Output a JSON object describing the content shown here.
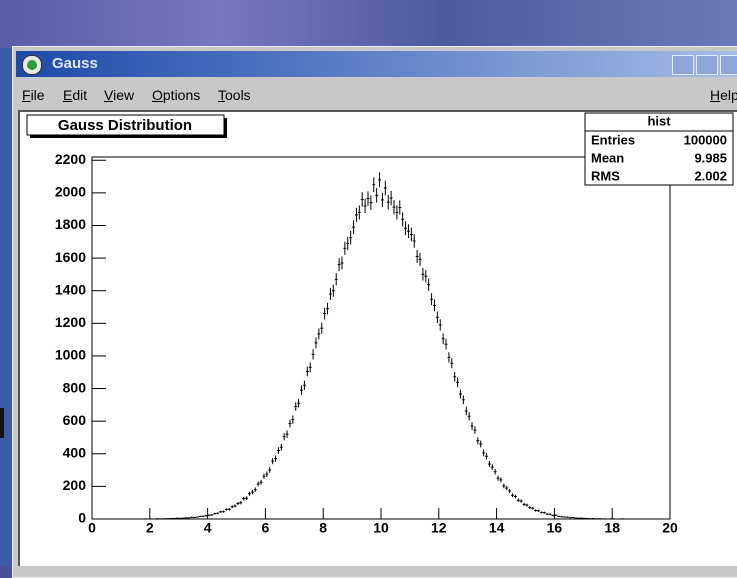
{
  "window": {
    "title": "Gauss",
    "menu": [
      "File",
      "Edit",
      "View",
      "Options",
      "Tools"
    ],
    "help": "Help"
  },
  "chart_data": {
    "type": "histogram",
    "title": "Gauss Distribution",
    "bins": [
      0,
      0.1,
      0.2,
      0.3,
      0.4,
      0.5,
      0.6,
      0.7,
      0.8,
      0.9,
      1,
      1.1,
      1.2,
      1.3,
      1.4,
      1.5,
      1.6,
      1.7,
      1.8,
      1.9,
      2,
      2.1,
      2.2,
      2.3,
      2.4,
      2.5,
      2.6,
      2.7,
      2.8,
      2.9,
      3,
      3.1,
      3.2,
      3.3,
      3.4,
      3.5,
      3.6,
      3.7,
      3.8,
      3.9,
      4,
      4.1,
      4.2,
      4.3,
      4.4,
      4.5,
      4.6,
      4.7,
      4.8,
      4.9,
      5,
      5.1,
      5.2,
      5.3,
      5.4,
      5.5,
      5.6,
      5.7,
      5.8,
      5.9,
      6,
      6.1,
      6.2,
      6.3,
      6.4,
      6.5,
      6.6,
      6.7,
      6.8,
      6.9,
      7,
      7.1,
      7.2,
      7.3,
      7.4,
      7.5,
      7.6,
      7.7,
      7.8,
      7.9,
      8,
      8.1,
      8.2,
      8.3,
      8.4,
      8.5,
      8.6,
      8.7,
      8.8,
      8.9,
      9,
      9.1,
      9.2,
      9.3,
      9.4,
      9.5,
      9.6,
      9.7,
      9.8,
      9.9,
      10,
      10.1,
      10.2,
      10.3,
      10.4,
      10.5,
      10.6,
      10.7,
      10.8,
      10.9,
      11,
      11.1,
      11.2,
      11.3,
      11.4,
      11.5,
      11.6,
      11.7,
      11.8,
      11.9,
      12,
      12.1,
      12.2,
      12.3,
      12.4,
      12.5,
      12.6,
      12.7,
      12.8,
      12.9,
      13,
      13.1,
      13.2,
      13.3,
      13.4,
      13.5,
      13.6,
      13.7,
      13.8,
      13.9,
      14,
      14.1,
      14.2,
      14.3,
      14.4,
      14.5,
      14.6,
      14.7,
      14.8,
      14.9,
      15,
      15.1,
      15.2,
      15.3,
      15.4,
      15.5,
      15.6,
      15.7,
      15.8,
      15.9,
      16,
      16.1,
      16.2,
      16.3,
      16.4,
      16.5,
      16.6,
      16.7,
      16.8,
      16.9,
      17,
      17.1,
      17.2,
      17.3,
      17.4,
      17.5,
      17.6,
      17.7,
      17.8,
      17.9,
      18,
      18.1,
      18.2,
      18.3,
      18.4,
      18.5,
      18.6,
      18.7,
      18.8,
      18.9,
      19,
      19.1,
      19.2,
      19.3,
      19.4,
      19.5,
      19.6,
      19.7,
      19.8,
      19.9,
      20
    ],
    "values": [
      0,
      0,
      0,
      0,
      0,
      0,
      0,
      0,
      0,
      0,
      0,
      0,
      0,
      0,
      0,
      0,
      0,
      0,
      1,
      0,
      1,
      0,
      2,
      1,
      1,
      2,
      2,
      3,
      3,
      5,
      4,
      5,
      7,
      7,
      10,
      10,
      12,
      16,
      17,
      20,
      23,
      25,
      33,
      35,
      44,
      45,
      58,
      60,
      75,
      80,
      95,
      100,
      125,
      128,
      155,
      165,
      180,
      215,
      225,
      262,
      275,
      300,
      355,
      370,
      420,
      440,
      505,
      520,
      585,
      610,
      690,
      710,
      790,
      820,
      905,
      930,
      1010,
      1080,
      1135,
      1170,
      1260,
      1290,
      1380,
      1400,
      1470,
      1560,
      1570,
      1660,
      1690,
      1725,
      1790,
      1865,
      1880,
      1960,
      1920,
      1965,
      1940,
      2050,
      1985,
      2080,
      1957,
      2030,
      1943,
      1968,
      1912,
      1880,
      1910,
      1838,
      1783,
      1765,
      1745,
      1705,
      1610,
      1592,
      1501,
      1489,
      1437,
      1348,
      1310,
      1237,
      1190,
      1105,
      1072,
      991,
      955,
      872,
      838,
      766,
      731,
      662,
      630,
      570,
      545,
      480,
      460,
      405,
      385,
      337,
      318,
      290,
      250,
      240,
      203,
      190,
      172,
      145,
      138,
      115,
      110,
      90,
      85,
      70,
      66,
      52,
      50,
      40,
      39,
      30,
      29,
      22,
      23,
      16,
      14,
      12,
      11,
      8,
      9,
      6,
      5,
      5,
      4,
      3,
      2,
      3,
      1,
      2,
      1,
      1,
      0,
      1,
      1,
      0,
      0,
      1,
      0,
      0,
      0,
      0,
      0,
      0,
      0,
      0,
      0,
      0,
      0,
      0,
      0,
      0,
      0,
      0
    ],
    "errors": [
      0,
      0,
      0,
      0,
      0,
      0,
      0,
      0,
      0,
      0,
      0,
      0,
      0,
      0,
      0,
      0,
      0,
      0,
      1,
      0,
      1,
      0,
      1.4,
      1,
      1,
      1.4,
      1.4,
      1.7,
      1.7,
      2.2,
      2,
      2.2,
      2.6,
      2.6,
      3.2,
      3.2,
      3.5,
      4,
      4.1,
      4.5,
      4.8,
      5,
      5.7,
      5.9,
      6.6,
      6.7,
      7.6,
      7.7,
      8.7,
      8.9,
      9.7,
      10,
      11.2,
      11.3,
      12.4,
      12.8,
      13.4,
      14.7,
      15,
      16.2,
      16.6,
      17.3,
      18.8,
      19.2,
      20.5,
      21,
      22.5,
      22.8,
      24.2,
      24.7,
      26.3,
      26.6,
      28.1,
      28.6,
      30.1,
      30.5,
      31.8,
      32.9,
      33.7,
      34.2,
      35.5,
      35.9,
      37.1,
      37.4,
      38.3,
      39.5,
      39.6,
      40.7,
      41.1,
      41.5,
      42.3,
      43.2,
      43.4,
      44.3,
      43.8,
      44.3,
      44,
      45.3,
      44.6,
      45.6,
      44.2,
      45.1,
      44.1,
      44.4,
      43.7,
      43.4,
      43.7,
      42.9,
      42.2,
      42,
      41.8,
      41.3,
      40.1,
      39.9,
      38.7,
      38.6,
      37.9,
      36.7,
      36.2,
      35.2,
      34.5,
      33.2,
      32.7,
      31.5,
      30.9,
      29.5,
      28.9,
      27.7,
      27,
      25.7,
      25.1,
      23.9,
      23.3,
      21.9,
      21.4,
      20.1,
      19.6,
      18.4,
      17.8,
      17,
      15.8,
      15.5,
      14.2,
      13.8,
      13.1,
      12,
      11.7,
      10.7,
      10.5,
      9.5,
      9.2,
      8.4,
      8.1,
      7.2,
      7.1,
      6.3,
      6.2,
      5.5,
      5.4,
      4.7,
      4.8,
      4,
      3.7,
      3.5,
      3.3,
      2.8,
      3,
      2.4,
      2.2,
      2.2,
      2,
      1.7,
      1.4,
      1.7,
      1,
      1.4,
      1,
      1,
      0,
      1,
      1,
      0,
      0,
      1,
      0,
      0,
      0,
      0,
      0,
      0,
      0,
      0,
      0,
      0,
      0,
      0,
      0,
      0,
      0,
      0
    ],
    "color": "#000000",
    "xlim": [
      0,
      20
    ],
    "xticks": [
      0,
      2,
      4,
      6,
      8,
      10,
      12,
      14,
      16,
      18,
      20
    ],
    "ylim": [
      0,
      2220
    ],
    "yticks": [
      0,
      200,
      400,
      600,
      800,
      1000,
      1200,
      1400,
      1600,
      1800,
      2000,
      2200
    ],
    "stats": {
      "title": "hist",
      "rows": [
        {
          "label": "Entries",
          "value": 100000
        },
        {
          "label": "Mean",
          "value": 9.985
        },
        {
          "label": "RMS",
          "value": 2.002
        }
      ]
    }
  }
}
